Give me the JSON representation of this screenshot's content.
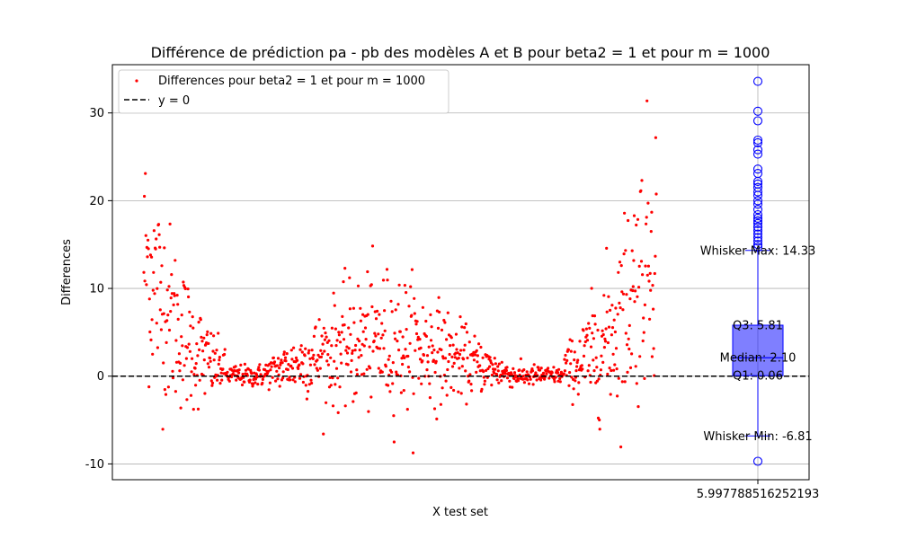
{
  "chart_data": {
    "type": "scatter",
    "title": "Différence de prédiction pa - pb des modèles A et B pour beta2 = 1 et pour m = 1000",
    "xlabel": "X test set",
    "ylabel": "Differences",
    "ylim": [
      -11.8,
      35.5
    ],
    "yticks": [
      -10,
      0,
      10,
      20,
      30
    ],
    "xtick_label": "5.997788516252193",
    "grid": "horizontal",
    "legend_position": "upper-left",
    "series": [
      {
        "name": "Differences pour beta2 = 1 et pour m = 1000",
        "color": "#ff0000",
        "marker": "point",
        "count": 1000
      },
      {
        "name": "y = 0",
        "color": "#000000",
        "style": "dashed",
        "y": 0
      }
    ],
    "boxplot": {
      "color": "#0000ff",
      "whisker_max": 14.33,
      "q3": 5.81,
      "median": 2.1,
      "q1": 0.06,
      "whisker_min": -6.81,
      "outliers": [
        33.6,
        30.2,
        29.1,
        26.9,
        26.6,
        25.8,
        25.3,
        23.6,
        23.1,
        22.2,
        21.9,
        21.5,
        21.0,
        20.6,
        20.0,
        19.6,
        19.0,
        18.4,
        18.0,
        17.7,
        17.4,
        17.0,
        16.6,
        16.2,
        15.8,
        15.4,
        15.0,
        14.7,
        -9.7
      ]
    },
    "annotations": {
      "whisker_max": "Whisker Max: 14.33",
      "q3": "Q3: 5.81",
      "median": "Median: 2.10",
      "q1": "Q1: 0.06",
      "whisker_min": "Whisker Min: -6.81"
    }
  }
}
